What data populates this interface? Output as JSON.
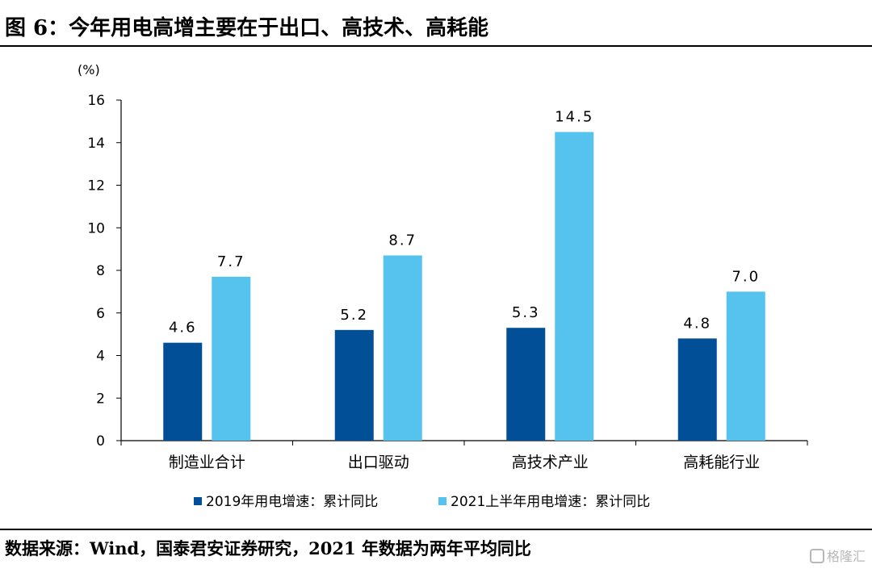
{
  "header": {
    "title": "图 6：今年用电高增主要在于出口、高技术、高耗能"
  },
  "footer": {
    "source": "数据来源：Wind，国泰君安证券研究，2021 年数据为两年平均同比"
  },
  "watermark": {
    "text": "格隆汇"
  },
  "colors": {
    "series1": "#004f97",
    "series2": "#56c2ee",
    "axis": "#000000"
  },
  "chart_data": {
    "type": "bar",
    "unit_label": "(%)",
    "categories": [
      "制造业合计",
      "出口驱动",
      "高技术产业",
      "高耗能行业"
    ],
    "series": [
      {
        "name": "2019年用电增速：累计同比",
        "values": [
          4.6,
          5.2,
          5.3,
          4.8
        ]
      },
      {
        "name": "2021上半年用电增速：累计同比",
        "values": [
          7.7,
          8.7,
          14.5,
          7.0
        ]
      }
    ],
    "ylim": [
      0,
      16
    ],
    "yticks": [
      0,
      2,
      4,
      6,
      8,
      10,
      12,
      14,
      16
    ],
    "data_labels": true,
    "legend_position": "bottom",
    "grid": false
  }
}
